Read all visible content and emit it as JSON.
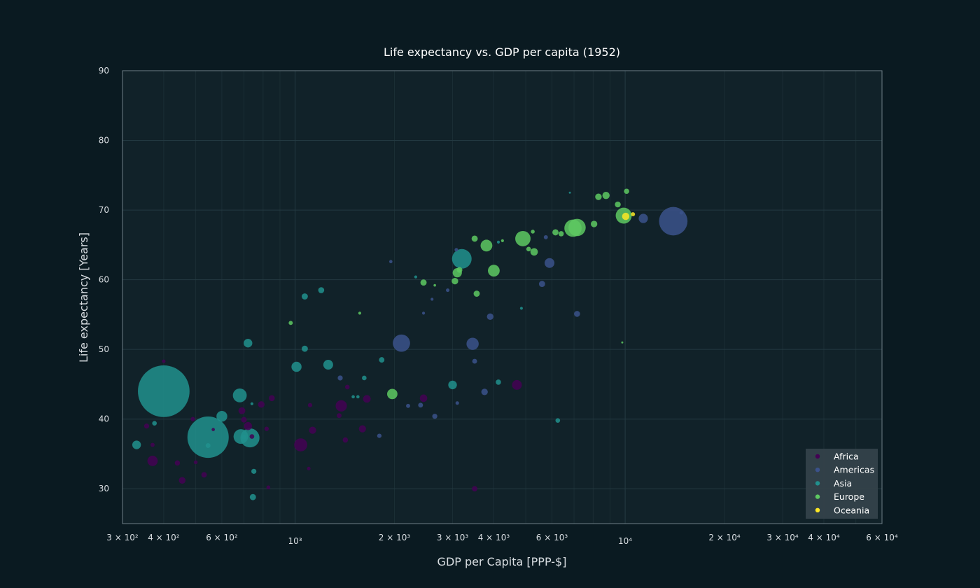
{
  "chart_data": {
    "type": "scatter",
    "title": "Life expectancy vs. GDP per capita (1952)",
    "xlabel": "GDP per Capita [PPP-$]",
    "ylabel": "Life expectancy [Years]",
    "x_scale": "log",
    "xlim": [
      300,
      60000
    ],
    "ylim": [
      25,
      90
    ],
    "grid": true,
    "legend_position": "bottom-right",
    "x_ticks": [
      {
        "value": 300,
        "label": "3 × 10²"
      },
      {
        "value": 400,
        "label": "4 × 10²"
      },
      {
        "value": 600,
        "label": "6 × 10²"
      },
      {
        "value": 1000,
        "label": "10³"
      },
      {
        "value": 2000,
        "label": "2 × 10³"
      },
      {
        "value": 3000,
        "label": "3 × 10³"
      },
      {
        "value": 4000,
        "label": "4 × 10³"
      },
      {
        "value": 6000,
        "label": "6 × 10³"
      },
      {
        "value": 10000,
        "label": "10⁴"
      },
      {
        "value": 20000,
        "label": "2 × 10⁴"
      },
      {
        "value": 30000,
        "label": "3 × 10⁴"
      },
      {
        "value": 40000,
        "label": "4 × 10⁴"
      },
      {
        "value": 60000,
        "label": "6 × 10⁴"
      }
    ],
    "y_ticks": [
      30,
      40,
      50,
      60,
      70,
      80,
      90
    ],
    "series": [
      {
        "name": "Africa",
        "color": "#440154",
        "points": [
          {
            "x": 400,
            "y": 48.3,
            "pop": 0.6
          },
          {
            "x": 355,
            "y": 39.0,
            "pop": 1.2
          },
          {
            "x": 370,
            "y": 34.0,
            "pop": 5.0
          },
          {
            "x": 370,
            "y": 36.3,
            "pop": 0.8
          },
          {
            "x": 440,
            "y": 33.7,
            "pop": 1.3
          },
          {
            "x": 455,
            "y": 31.2,
            "pop": 2.1
          },
          {
            "x": 490,
            "y": 40.0,
            "pop": 0.9
          },
          {
            "x": 500,
            "y": 33.8,
            "pop": 0.7
          },
          {
            "x": 530,
            "y": 32.0,
            "pop": 1.4
          },
          {
            "x": 565,
            "y": 38.5,
            "pop": 0.5
          },
          {
            "x": 690,
            "y": 41.2,
            "pop": 2.2
          },
          {
            "x": 700,
            "y": 39.9,
            "pop": 1.5
          },
          {
            "x": 720,
            "y": 39.0,
            "pop": 3.0
          },
          {
            "x": 740,
            "y": 37.5,
            "pop": 1.0
          },
          {
            "x": 790,
            "y": 42.1,
            "pop": 2.0
          },
          {
            "x": 820,
            "y": 38.6,
            "pop": 0.9
          },
          {
            "x": 850,
            "y": 43.0,
            "pop": 1.7
          },
          {
            "x": 830,
            "y": 30.2,
            "pop": 0.7
          },
          {
            "x": 1040,
            "y": 36.3,
            "pop": 8.0
          },
          {
            "x": 1100,
            "y": 32.9,
            "pop": 0.6
          },
          {
            "x": 1110,
            "y": 42.0,
            "pop": 0.9
          },
          {
            "x": 1130,
            "y": 38.4,
            "pop": 2.4
          },
          {
            "x": 1360,
            "y": 40.5,
            "pop": 1.1
          },
          {
            "x": 1380,
            "y": 41.9,
            "pop": 6.0
          },
          {
            "x": 1420,
            "y": 37.0,
            "pop": 1.3
          },
          {
            "x": 1440,
            "y": 44.6,
            "pop": 1.0
          },
          {
            "x": 1600,
            "y": 38.6,
            "pop": 2.4
          },
          {
            "x": 1650,
            "y": 42.9,
            "pop": 2.7
          },
          {
            "x": 2450,
            "y": 43.0,
            "pop": 2.6
          },
          {
            "x": 3500,
            "y": 30.0,
            "pop": 1.4
          },
          {
            "x": 4700,
            "y": 44.9,
            "pop": 4.5
          }
        ]
      },
      {
        "name": "Americas",
        "color": "#3b528b",
        "points": [
          {
            "x": 1370,
            "y": 45.9,
            "pop": 1.2
          },
          {
            "x": 1800,
            "y": 37.6,
            "pop": 0.9
          },
          {
            "x": 1950,
            "y": 62.6,
            "pop": 0.5
          },
          {
            "x": 2100,
            "y": 50.9,
            "pop": 14.0
          },
          {
            "x": 2200,
            "y": 41.9,
            "pop": 0.8
          },
          {
            "x": 2400,
            "y": 42.0,
            "pop": 1.1
          },
          {
            "x": 2450,
            "y": 55.2,
            "pop": 0.4
          },
          {
            "x": 2650,
            "y": 40.4,
            "pop": 1.2
          },
          {
            "x": 2600,
            "y": 57.2,
            "pop": 0.4
          },
          {
            "x": 2900,
            "y": 58.5,
            "pop": 0.6
          },
          {
            "x": 3100,
            "y": 42.3,
            "pop": 0.6
          },
          {
            "x": 3080,
            "y": 64.3,
            "pop": 0.6
          },
          {
            "x": 3450,
            "y": 50.8,
            "pop": 7.0
          },
          {
            "x": 3500,
            "y": 48.3,
            "pop": 1.1
          },
          {
            "x": 3750,
            "y": 43.9,
            "pop": 2.0
          },
          {
            "x": 3900,
            "y": 54.7,
            "pop": 2.0
          },
          {
            "x": 5600,
            "y": 59.4,
            "pop": 1.8
          },
          {
            "x": 5750,
            "y": 66.1,
            "pop": 0.8
          },
          {
            "x": 5900,
            "y": 62.4,
            "pop": 4.5
          },
          {
            "x": 7150,
            "y": 55.1,
            "pop": 1.7
          },
          {
            "x": 11350,
            "y": 68.8,
            "pop": 4.0
          },
          {
            "x": 13990,
            "y": 68.4,
            "pop": 38.0
          },
          {
            "x": 14800,
            "y": 69.6,
            "pop": 0.6
          }
        ]
      },
      {
        "name": "Asia",
        "color": "#21908d",
        "points": [
          {
            "x": 400,
            "y": 44.0,
            "pop": 125.0
          },
          {
            "x": 331,
            "y": 36.3,
            "pop": 3.5
          },
          {
            "x": 375,
            "y": 39.4,
            "pop": 1.0
          },
          {
            "x": 545,
            "y": 37.4,
            "pop": 80.0
          },
          {
            "x": 545,
            "y": 36.2,
            "pop": 1.1
          },
          {
            "x": 600,
            "y": 40.4,
            "pop": 5.5
          },
          {
            "x": 680,
            "y": 43.4,
            "pop": 9.0
          },
          {
            "x": 685,
            "y": 37.5,
            "pop": 10.0
          },
          {
            "x": 700,
            "y": 37.4,
            "pop": 1.0
          },
          {
            "x": 730,
            "y": 37.3,
            "pop": 17.0
          },
          {
            "x": 720,
            "y": 50.9,
            "pop": 3.5
          },
          {
            "x": 740,
            "y": 42.2,
            "pop": 0.4
          },
          {
            "x": 750,
            "y": 32.5,
            "pop": 1.2
          },
          {
            "x": 745,
            "y": 28.8,
            "pop": 1.8
          },
          {
            "x": 1010,
            "y": 47.5,
            "pop": 4.8
          },
          {
            "x": 1070,
            "y": 57.6,
            "pop": 1.8
          },
          {
            "x": 1070,
            "y": 50.1,
            "pop": 1.8
          },
          {
            "x": 1200,
            "y": 58.5,
            "pop": 1.7
          },
          {
            "x": 1260,
            "y": 47.8,
            "pop": 4.5
          },
          {
            "x": 1500,
            "y": 43.2,
            "pop": 0.5
          },
          {
            "x": 1550,
            "y": 43.2,
            "pop": 0.5
          },
          {
            "x": 1620,
            "y": 45.9,
            "pop": 1.0
          },
          {
            "x": 1830,
            "y": 48.5,
            "pop": 1.4
          },
          {
            "x": 2320,
            "y": 60.4,
            "pop": 0.4
          },
          {
            "x": 3000,
            "y": 44.9,
            "pop": 3.5
          },
          {
            "x": 3200,
            "y": 63.0,
            "pop": 18.0
          },
          {
            "x": 4130,
            "y": 65.4,
            "pop": 0.4
          },
          {
            "x": 4130,
            "y": 45.3,
            "pop": 1.3
          },
          {
            "x": 4850,
            "y": 55.9,
            "pop": 0.4
          },
          {
            "x": 6250,
            "y": 39.8,
            "pop": 1.0
          },
          {
            "x": 6800,
            "y": 72.5,
            "pop": 0.2
          }
        ]
      },
      {
        "name": "Europe",
        "color": "#5ec962",
        "points": [
          {
            "x": 970,
            "y": 53.8,
            "pop": 0.8
          },
          {
            "x": 1570,
            "y": 55.2,
            "pop": 0.4
          },
          {
            "x": 1970,
            "y": 43.6,
            "pop": 5.0
          },
          {
            "x": 2450,
            "y": 59.6,
            "pop": 1.8
          },
          {
            "x": 2650,
            "y": 59.2,
            "pop": 0.3
          },
          {
            "x": 3050,
            "y": 59.8,
            "pop": 2.0
          },
          {
            "x": 3100,
            "y": 61.0,
            "pop": 4.0
          },
          {
            "x": 3150,
            "y": 61.4,
            "pop": 1.5
          },
          {
            "x": 3500,
            "y": 65.9,
            "pop": 1.8
          },
          {
            "x": 3550,
            "y": 58.0,
            "pop": 1.8
          },
          {
            "x": 3800,
            "y": 64.9,
            "pop": 6.5
          },
          {
            "x": 4000,
            "y": 61.3,
            "pop": 6.5
          },
          {
            "x": 4250,
            "y": 65.6,
            "pop": 0.4
          },
          {
            "x": 4900,
            "y": 65.9,
            "pop": 11.0
          },
          {
            "x": 5100,
            "y": 64.4,
            "pop": 1.0
          },
          {
            "x": 5250,
            "y": 66.9,
            "pop": 0.7
          },
          {
            "x": 5300,
            "y": 64.0,
            "pop": 2.6
          },
          {
            "x": 6150,
            "y": 66.8,
            "pop": 1.8
          },
          {
            "x": 6400,
            "y": 66.6,
            "pop": 1.3
          },
          {
            "x": 6950,
            "y": 67.4,
            "pop": 14.0
          },
          {
            "x": 7150,
            "y": 67.5,
            "pop": 14.0
          },
          {
            "x": 8050,
            "y": 68.0,
            "pop": 2.0
          },
          {
            "x": 8300,
            "y": 71.9,
            "pop": 2.0
          },
          {
            "x": 8750,
            "y": 72.1,
            "pop": 2.5
          },
          {
            "x": 9500,
            "y": 70.8,
            "pop": 1.6
          },
          {
            "x": 9900,
            "y": 69.2,
            "pop": 12.0
          },
          {
            "x": 10100,
            "y": 72.7,
            "pop": 1.3
          },
          {
            "x": 9800,
            "y": 51.0,
            "pop": 0.2
          }
        ]
      },
      {
        "name": "Oceania",
        "color": "#fde725",
        "points": [
          {
            "x": 10040,
            "y": 69.1,
            "pop": 2.5
          },
          {
            "x": 10560,
            "y": 69.4,
            "pop": 0.8
          }
        ]
      }
    ]
  }
}
